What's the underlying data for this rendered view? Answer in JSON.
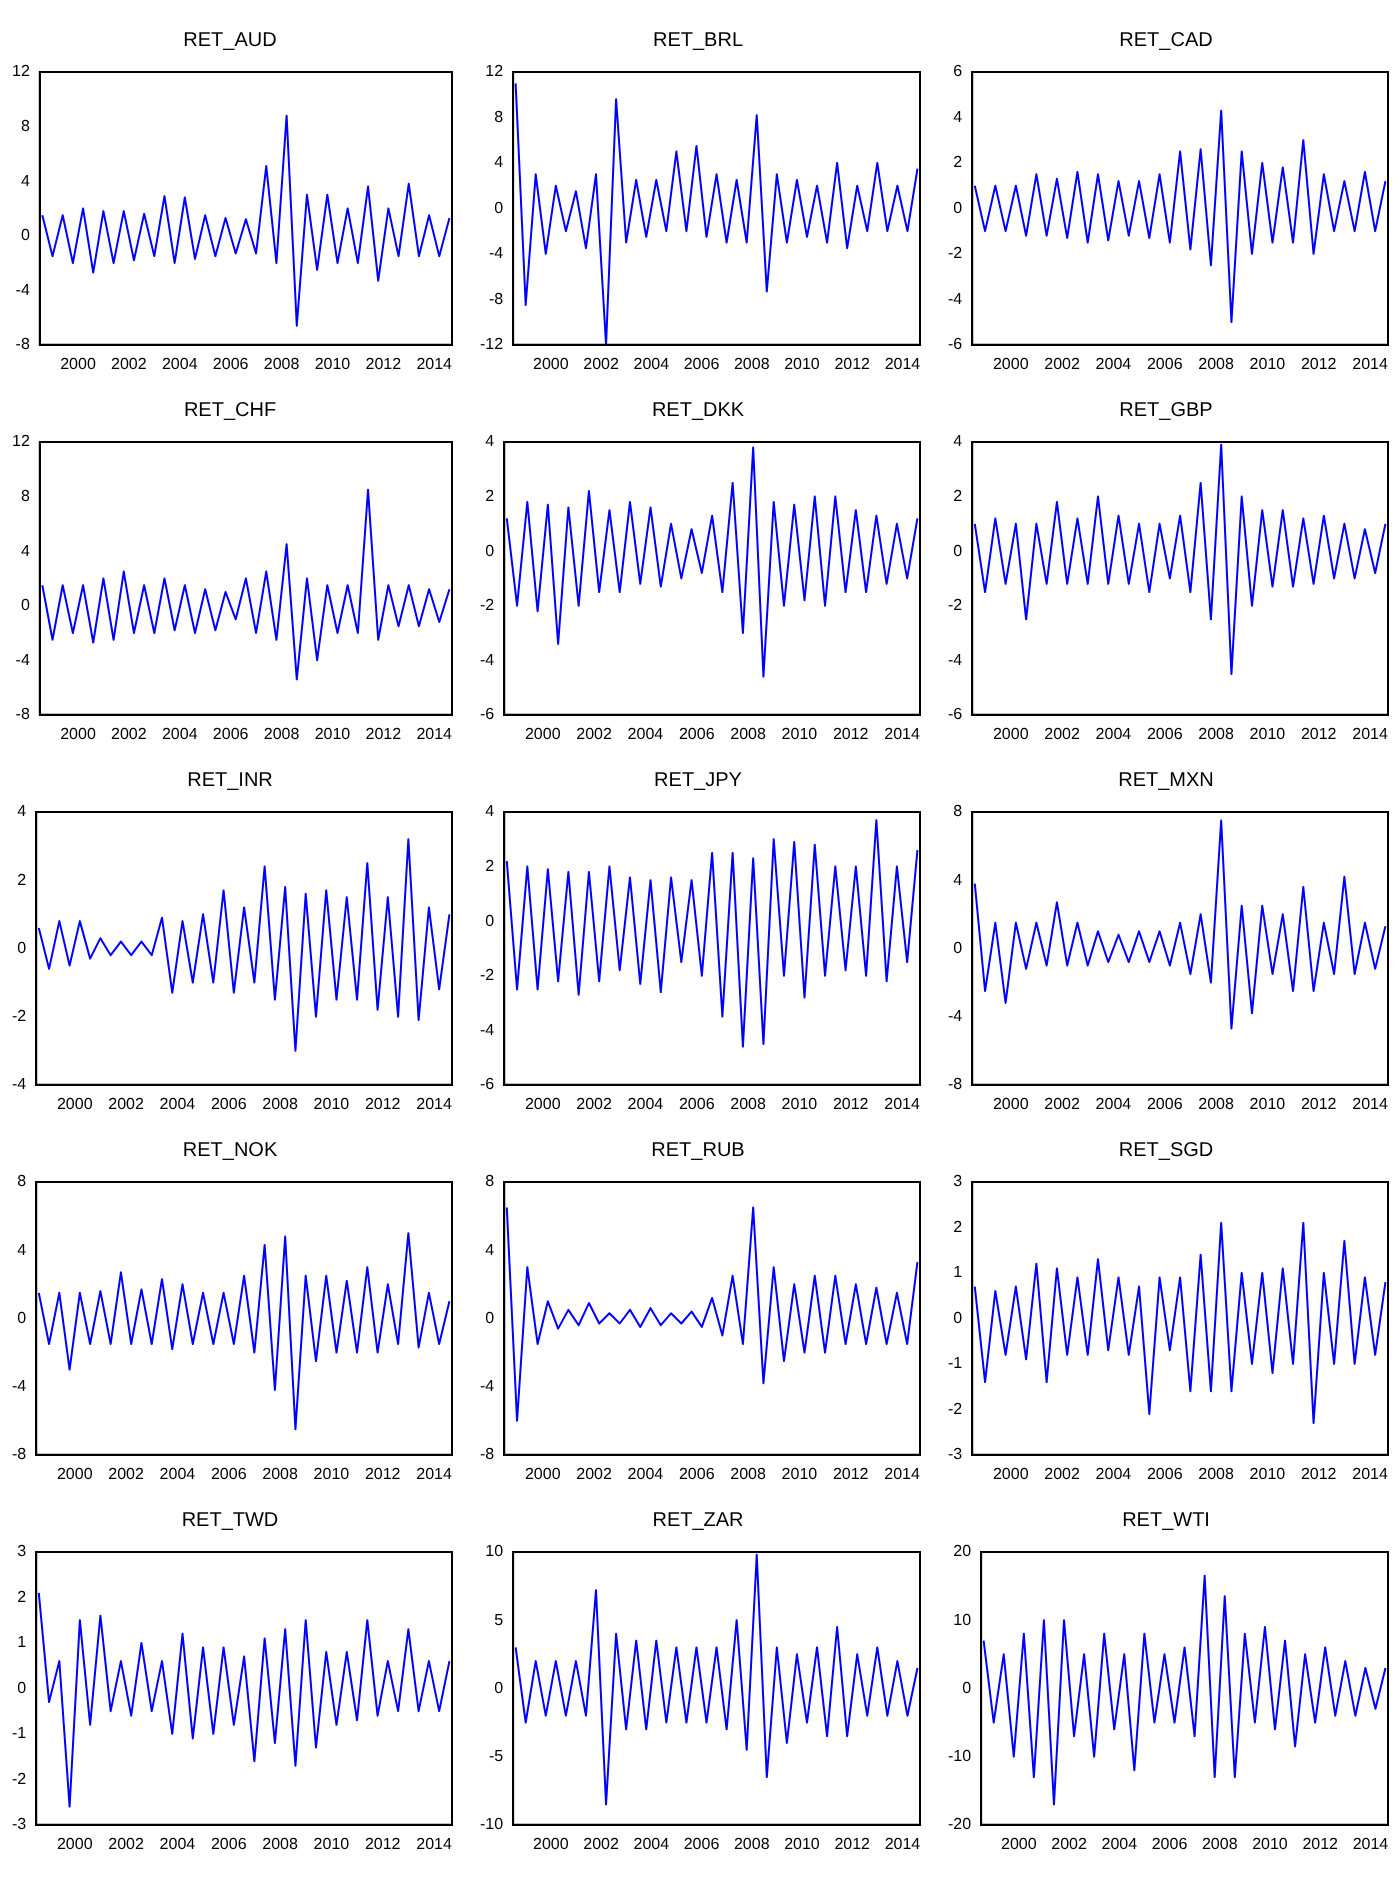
{
  "chart_data": [
    {
      "type": "line",
      "title": "RET_AUD",
      "color": "#0000ff",
      "xlim": [
        1998.5,
        2014.7
      ],
      "xticks": [
        2000,
        2002,
        2004,
        2006,
        2008,
        2010,
        2012,
        2014
      ],
      "ylim": [
        -8,
        12
      ],
      "yticks": [
        -8,
        -4,
        0,
        4,
        8,
        12
      ],
      "x": [
        1998.6,
        1999,
        1999.4,
        1999.8,
        2000.2,
        2000.6,
        2001,
        2001.4,
        2001.8,
        2002.2,
        2002.6,
        2003,
        2003.4,
        2003.8,
        2004.2,
        2004.6,
        2005,
        2005.4,
        2005.8,
        2006.2,
        2006.6,
        2007,
        2007.4,
        2007.8,
        2008.2,
        2008.6,
        2009,
        2009.4,
        2009.8,
        2010.2,
        2010.6,
        2011,
        2011.4,
        2011.8,
        2012.2,
        2012.6,
        2013,
        2013.4,
        2013.8,
        2014.2,
        2014.6
      ],
      "values": [
        1.5,
        -1.5,
        1.5,
        -2,
        2,
        -2.7,
        1.8,
        -2,
        1.8,
        -1.8,
        1.6,
        -1.5,
        2.9,
        -2,
        2.8,
        -1.7,
        1.5,
        -1.5,
        1.3,
        -1.3,
        1.2,
        -1.3,
        5.1,
        -2,
        8.8,
        -6.6,
        3,
        -2.5,
        3,
        -2,
        2,
        -2,
        3.6,
        -3.3,
        2,
        -1.5,
        3.8,
        -1.5,
        1.5,
        -1.5,
        1.3
      ]
    },
    {
      "type": "line",
      "title": "RET_BRL",
      "color": "#0000ff",
      "xlim": [
        1998.5,
        2014.7
      ],
      "xticks": [
        2000,
        2002,
        2004,
        2006,
        2008,
        2010,
        2012,
        2014
      ],
      "ylim": [
        -12,
        12
      ],
      "yticks": [
        -12,
        -8,
        -4,
        0,
        4,
        8,
        12
      ],
      "x": [
        1998.6,
        1999,
        1999.4,
        1999.8,
        2000.2,
        2000.6,
        2001,
        2001.4,
        2001.8,
        2002.2,
        2002.6,
        2003,
        2003.4,
        2003.8,
        2004.2,
        2004.6,
        2005,
        2005.4,
        2005.8,
        2006.2,
        2006.6,
        2007,
        2007.4,
        2007.8,
        2008.2,
        2008.6,
        2009,
        2009.4,
        2009.8,
        2010.2,
        2010.6,
        2011,
        2011.4,
        2011.8,
        2012.2,
        2012.6,
        2013,
        2013.4,
        2013.8,
        2014.2,
        2014.6
      ],
      "values": [
        11,
        -8.5,
        3,
        -4,
        2,
        -2,
        1.5,
        -3.5,
        3,
        -12,
        9.6,
        -3,
        2.5,
        -2.5,
        2.5,
        -2,
        5,
        -2,
        5.5,
        -2.5,
        3,
        -3,
        2.5,
        -3,
        8.2,
        -7.3,
        3,
        -3,
        2.5,
        -2.5,
        2,
        -3,
        4,
        -3.5,
        2,
        -2,
        4,
        -2,
        2,
        -2,
        3.5
      ]
    },
    {
      "type": "line",
      "title": "RET_CAD",
      "color": "#0000ff",
      "xlim": [
        1998.5,
        2014.7
      ],
      "xticks": [
        2000,
        2002,
        2004,
        2006,
        2008,
        2010,
        2012,
        2014
      ],
      "ylim": [
        -6,
        6
      ],
      "yticks": [
        -6,
        -4,
        -2,
        0,
        2,
        4,
        6
      ],
      "x": [
        1998.6,
        1999,
        1999.4,
        1999.8,
        2000.2,
        2000.6,
        2001,
        2001.4,
        2001.8,
        2002.2,
        2002.6,
        2003,
        2003.4,
        2003.8,
        2004.2,
        2004.6,
        2005,
        2005.4,
        2005.8,
        2006.2,
        2006.6,
        2007,
        2007.4,
        2007.8,
        2008.2,
        2008.6,
        2009,
        2009.4,
        2009.8,
        2010.2,
        2010.6,
        2011,
        2011.4,
        2011.8,
        2012.2,
        2012.6,
        2013,
        2013.4,
        2013.8,
        2014.2,
        2014.6
      ],
      "values": [
        1,
        -1,
        1,
        -1,
        1,
        -1.2,
        1.5,
        -1.2,
        1.3,
        -1.3,
        1.6,
        -1.5,
        1.5,
        -1.4,
        1.2,
        -1.2,
        1.2,
        -1.3,
        1.5,
        -1.5,
        2.5,
        -1.8,
        2.6,
        -2.5,
        4.3,
        -5,
        2.5,
        -2,
        2,
        -1.5,
        1.8,
        -1.5,
        3,
        -2,
        1.5,
        -1,
        1.2,
        -1,
        1.6,
        -1,
        1.2
      ]
    },
    {
      "type": "line",
      "title": "RET_CHF",
      "color": "#0000ff",
      "xlim": [
        1998.5,
        2014.7
      ],
      "xticks": [
        2000,
        2002,
        2004,
        2006,
        2008,
        2010,
        2012,
        2014
      ],
      "ylim": [
        -8,
        12
      ],
      "yticks": [
        -8,
        -4,
        0,
        4,
        8,
        12
      ],
      "x": [
        1998.6,
        1999,
        1999.4,
        1999.8,
        2000.2,
        2000.6,
        2001,
        2001.4,
        2001.8,
        2002.2,
        2002.6,
        2003,
        2003.4,
        2003.8,
        2004.2,
        2004.6,
        2005,
        2005.4,
        2005.8,
        2006.2,
        2006.6,
        2007,
        2007.4,
        2007.8,
        2008.2,
        2008.6,
        2009,
        2009.4,
        2009.8,
        2010.2,
        2010.6,
        2011,
        2011.4,
        2011.8,
        2012.2,
        2012.6,
        2013,
        2013.4,
        2013.8,
        2014.2,
        2014.6
      ],
      "values": [
        1.5,
        -2.5,
        1.5,
        -2,
        1.5,
        -2.7,
        2,
        -2.5,
        2.5,
        -2,
        1.5,
        -2,
        2,
        -1.8,
        1.5,
        -2,
        1.2,
        -1.8,
        1,
        -1,
        2,
        -2,
        2.5,
        -2.5,
        4.5,
        -5.4,
        2,
        -4,
        1.5,
        -2,
        1.5,
        -2,
        8.5,
        -2.5,
        1.5,
        -1.5,
        1.5,
        -1.5,
        1.2,
        -1.2,
        1.2
      ]
    },
    {
      "type": "line",
      "title": "RET_DKK",
      "color": "#0000ff",
      "xlim": [
        1998.5,
        2014.7
      ],
      "xticks": [
        2000,
        2002,
        2004,
        2006,
        2008,
        2010,
        2012,
        2014
      ],
      "ylim": [
        -6,
        4
      ],
      "yticks": [
        -6,
        -4,
        -2,
        0,
        2,
        4
      ],
      "x": [
        1998.6,
        1999,
        1999.4,
        1999.8,
        2000.2,
        2000.6,
        2001,
        2001.4,
        2001.8,
        2002.2,
        2002.6,
        2003,
        2003.4,
        2003.8,
        2004.2,
        2004.6,
        2005,
        2005.4,
        2005.8,
        2006.2,
        2006.6,
        2007,
        2007.4,
        2007.8,
        2008.2,
        2008.6,
        2009,
        2009.4,
        2009.8,
        2010.2,
        2010.6,
        2011,
        2011.4,
        2011.8,
        2012.2,
        2012.6,
        2013,
        2013.4,
        2013.8,
        2014.2,
        2014.6
      ],
      "values": [
        1.2,
        -2,
        1.8,
        -2.2,
        1.7,
        -3.4,
        1.6,
        -2,
        2.2,
        -1.5,
        1.5,
        -1.5,
        1.8,
        -1.2,
        1.6,
        -1.3,
        1,
        -1,
        0.8,
        -0.8,
        1.3,
        -1.5,
        2.5,
        -3,
        3.8,
        -4.6,
        1.8,
        -2,
        1.7,
        -1.8,
        2,
        -2,
        2,
        -1.5,
        1.5,
        -1.5,
        1.3,
        -1.2,
        1,
        -1,
        1.2
      ]
    },
    {
      "type": "line",
      "title": "RET_GBP",
      "color": "#0000ff",
      "xlim": [
        1998.5,
        2014.7
      ],
      "xticks": [
        2000,
        2002,
        2004,
        2006,
        2008,
        2010,
        2012,
        2014
      ],
      "ylim": [
        -6,
        4
      ],
      "yticks": [
        -6,
        -4,
        -2,
        0,
        2,
        4
      ],
      "x": [
        1998.6,
        1999,
        1999.4,
        1999.8,
        2000.2,
        2000.6,
        2001,
        2001.4,
        2001.8,
        2002.2,
        2002.6,
        2003,
        2003.4,
        2003.8,
        2004.2,
        2004.6,
        2005,
        2005.4,
        2005.8,
        2006.2,
        2006.6,
        2007,
        2007.4,
        2007.8,
        2008.2,
        2008.6,
        2009,
        2009.4,
        2009.8,
        2010.2,
        2010.6,
        2011,
        2011.4,
        2011.8,
        2012.2,
        2012.6,
        2013,
        2013.4,
        2013.8,
        2014.2,
        2014.6
      ],
      "values": [
        1,
        -1.5,
        1.2,
        -1.2,
        1,
        -2.5,
        1,
        -1.2,
        1.8,
        -1.2,
        1.2,
        -1.2,
        2,
        -1.2,
        1.3,
        -1.2,
        1,
        -1.5,
        1,
        -1,
        1.3,
        -1.5,
        2.5,
        -2.5,
        3.9,
        -4.5,
        2,
        -2,
        1.5,
        -1.3,
        1.5,
        -1.3,
        1.2,
        -1.2,
        1.3,
        -1,
        1,
        -1,
        0.8,
        -0.8,
        1
      ]
    },
    {
      "type": "line",
      "title": "RET_INR",
      "color": "#0000ff",
      "xlim": [
        1998.5,
        2014.7
      ],
      "xticks": [
        2000,
        2002,
        2004,
        2006,
        2008,
        2010,
        2012,
        2014
      ],
      "ylim": [
        -4,
        4
      ],
      "yticks": [
        -4,
        -2,
        0,
        2,
        4
      ],
      "x": [
        1998.6,
        1999,
        1999.4,
        1999.8,
        2000.2,
        2000.6,
        2001,
        2001.4,
        2001.8,
        2002.2,
        2002.6,
        2003,
        2003.4,
        2003.8,
        2004.2,
        2004.6,
        2005,
        2005.4,
        2005.8,
        2006.2,
        2006.6,
        2007,
        2007.4,
        2007.8,
        2008.2,
        2008.6,
        2009,
        2009.4,
        2009.8,
        2010.2,
        2010.6,
        2011,
        2011.4,
        2011.8,
        2012.2,
        2012.6,
        2013,
        2013.4,
        2013.8,
        2014.2,
        2014.6
      ],
      "values": [
        0.6,
        -0.6,
        0.8,
        -0.5,
        0.8,
        -0.3,
        0.3,
        -0.2,
        0.2,
        -0.2,
        0.2,
        -0.2,
        0.9,
        -1.3,
        0.8,
        -1,
        1,
        -1,
        1.7,
        -1.3,
        1.2,
        -1,
        2.4,
        -1.5,
        1.8,
        -3,
        1.6,
        -2,
        1.7,
        -1.5,
        1.5,
        -1.5,
        2.5,
        -1.8,
        1.5,
        -2,
        3.2,
        -2.1,
        1.2,
        -1.2,
        1
      ]
    },
    {
      "type": "line",
      "title": "RET_JPY",
      "color": "#0000ff",
      "xlim": [
        1998.5,
        2014.7
      ],
      "xticks": [
        2000,
        2002,
        2004,
        2006,
        2008,
        2010,
        2012,
        2014
      ],
      "ylim": [
        -6,
        4
      ],
      "yticks": [
        -6,
        -4,
        -2,
        0,
        2,
        4
      ],
      "x": [
        1998.6,
        1999,
        1999.4,
        1999.8,
        2000.2,
        2000.6,
        2001,
        2001.4,
        2001.8,
        2002.2,
        2002.6,
        2003,
        2003.4,
        2003.8,
        2004.2,
        2004.6,
        2005,
        2005.4,
        2005.8,
        2006.2,
        2006.6,
        2007,
        2007.4,
        2007.8,
        2008.2,
        2008.6,
        2009,
        2009.4,
        2009.8,
        2010.2,
        2010.6,
        2011,
        2011.4,
        2011.8,
        2012.2,
        2012.6,
        2013,
        2013.4,
        2013.8,
        2014.2,
        2014.6
      ],
      "values": [
        2.2,
        -2.5,
        2,
        -2.5,
        1.9,
        -2.2,
        1.8,
        -2.7,
        1.8,
        -2.2,
        2,
        -1.8,
        1.6,
        -2.3,
        1.5,
        -2.6,
        1.6,
        -1.5,
        1.5,
        -2,
        2.5,
        -3.5,
        2.5,
        -4.6,
        2.3,
        -4.5,
        3,
        -2,
        2.9,
        -2.8,
        2.8,
        -2,
        2,
        -1.8,
        2,
        -2,
        3.7,
        -2.2,
        2,
        -1.5,
        2.6
      ]
    },
    {
      "type": "line",
      "title": "RET_MXN",
      "color": "#0000ff",
      "xlim": [
        1998.5,
        2014.7
      ],
      "xticks": [
        2000,
        2002,
        2004,
        2006,
        2008,
        2010,
        2012,
        2014
      ],
      "ylim": [
        -8,
        8
      ],
      "yticks": [
        -8,
        -4,
        0,
        4,
        8
      ],
      "x": [
        1998.6,
        1999,
        1999.4,
        1999.8,
        2000.2,
        2000.6,
        2001,
        2001.4,
        2001.8,
        2002.2,
        2002.6,
        2003,
        2003.4,
        2003.8,
        2004.2,
        2004.6,
        2005,
        2005.4,
        2005.8,
        2006.2,
        2006.6,
        2007,
        2007.4,
        2007.8,
        2008.2,
        2008.6,
        2009,
        2009.4,
        2009.8,
        2010.2,
        2010.6,
        2011,
        2011.4,
        2011.8,
        2012.2,
        2012.6,
        2013,
        2013.4,
        2013.8,
        2014.2,
        2014.6
      ],
      "values": [
        3.8,
        -2.5,
        1.5,
        -3.2,
        1.5,
        -1.2,
        1.5,
        -1,
        2.7,
        -1,
        1.5,
        -1,
        1,
        -0.8,
        0.8,
        -0.8,
        1,
        -0.8,
        1,
        -1,
        1.5,
        -1.5,
        2,
        -2,
        7.5,
        -4.7,
        2.5,
        -3.8,
        2.5,
        -1.5,
        2,
        -2.5,
        3.6,
        -2.5,
        1.5,
        -1.5,
        4.2,
        -1.5,
        1.5,
        -1.2,
        1.3
      ]
    },
    {
      "type": "line",
      "title": "RET_NOK",
      "color": "#0000ff",
      "xlim": [
        1998.5,
        2014.7
      ],
      "xticks": [
        2000,
        2002,
        2004,
        2006,
        2008,
        2010,
        2012,
        2014
      ],
      "ylim": [
        -8,
        8
      ],
      "yticks": [
        -8,
        -4,
        0,
        4,
        8
      ],
      "x": [
        1998.6,
        1999,
        1999.4,
        1999.8,
        2000.2,
        2000.6,
        2001,
        2001.4,
        2001.8,
        2002.2,
        2002.6,
        2003,
        2003.4,
        2003.8,
        2004.2,
        2004.6,
        2005,
        2005.4,
        2005.8,
        2006.2,
        2006.6,
        2007,
        2007.4,
        2007.8,
        2008.2,
        2008.6,
        2009,
        2009.4,
        2009.8,
        2010.2,
        2010.6,
        2011,
        2011.4,
        2011.8,
        2012.2,
        2012.6,
        2013,
        2013.4,
        2013.8,
        2014.2,
        2014.6
      ],
      "values": [
        1.5,
        -1.5,
        1.5,
        -3,
        1.5,
        -1.5,
        1.6,
        -1.5,
        2.7,
        -1.5,
        1.7,
        -1.5,
        2.3,
        -1.8,
        2,
        -1.5,
        1.5,
        -1.5,
        1.5,
        -1.5,
        2.5,
        -2,
        4.3,
        -4.2,
        4.8,
        -6.5,
        2.5,
        -2.5,
        2.5,
        -2,
        2.2,
        -2,
        3,
        -2,
        2,
        -1.5,
        5,
        -1.7,
        1.5,
        -1.5,
        1
      ]
    },
    {
      "type": "line",
      "title": "RET_RUB",
      "color": "#0000ff",
      "xlim": [
        1998.5,
        2014.7
      ],
      "xticks": [
        2000,
        2002,
        2004,
        2006,
        2008,
        2010,
        2012,
        2014
      ],
      "ylim": [
        -8,
        8
      ],
      "yticks": [
        -8,
        -4,
        0,
        4,
        8
      ],
      "x": [
        1998.6,
        1999,
        1999.4,
        1999.8,
        2000.2,
        2000.6,
        2001,
        2001.4,
        2001.8,
        2002.2,
        2002.6,
        2003,
        2003.4,
        2003.8,
        2004.2,
        2004.6,
        2005,
        2005.4,
        2005.8,
        2006.2,
        2006.6,
        2007,
        2007.4,
        2007.8,
        2008.2,
        2008.6,
        2009,
        2009.4,
        2009.8,
        2010.2,
        2010.6,
        2011,
        2011.4,
        2011.8,
        2012.2,
        2012.6,
        2013,
        2013.4,
        2013.8,
        2014.2,
        2014.6
      ],
      "values": [
        6.5,
        -6,
        3,
        -1.5,
        1,
        -0.6,
        0.5,
        -0.4,
        0.9,
        -0.3,
        0.3,
        -0.3,
        0.5,
        -0.5,
        0.6,
        -0.4,
        0.3,
        -0.3,
        0.4,
        -0.5,
        1.2,
        -1,
        2.5,
        -1.5,
        6.5,
        -3.8,
        3,
        -2.5,
        2,
        -2,
        2.5,
        -2,
        2.5,
        -1.5,
        2,
        -1.5,
        1.8,
        -1.5,
        1.5,
        -1.5,
        3.3
      ]
    },
    {
      "type": "line",
      "title": "RET_SGD",
      "color": "#0000ff",
      "xlim": [
        1998.5,
        2014.7
      ],
      "xticks": [
        2000,
        2002,
        2004,
        2006,
        2008,
        2010,
        2012,
        2014
      ],
      "ylim": [
        -3,
        3
      ],
      "yticks": [
        -3,
        -2,
        -1,
        0,
        1,
        2,
        3
      ],
      "x": [
        1998.6,
        1999,
        1999.4,
        1999.8,
        2000.2,
        2000.6,
        2001,
        2001.4,
        2001.8,
        2002.2,
        2002.6,
        2003,
        2003.4,
        2003.8,
        2004.2,
        2004.6,
        2005,
        2005.4,
        2005.8,
        2006.2,
        2006.6,
        2007,
        2007.4,
        2007.8,
        2008.2,
        2008.6,
        2009,
        2009.4,
        2009.8,
        2010.2,
        2010.6,
        2011,
        2011.4,
        2011.8,
        2012.2,
        2012.6,
        2013,
        2013.4,
        2013.8,
        2014.2,
        2014.6
      ],
      "values": [
        0.7,
        -1.4,
        0.6,
        -0.8,
        0.7,
        -0.9,
        1.2,
        -1.4,
        1.1,
        -0.8,
        0.9,
        -0.8,
        1.3,
        -0.7,
        0.9,
        -0.8,
        0.7,
        -2.1,
        0.9,
        -0.7,
        0.9,
        -1.6,
        1.4,
        -1.6,
        2.1,
        -1.6,
        1,
        -1,
        1,
        -1.2,
        1.1,
        -1,
        2.1,
        -2.3,
        1,
        -1,
        1.7,
        -1,
        0.9,
        -0.8,
        0.8
      ]
    },
    {
      "type": "line",
      "title": "RET_TWD",
      "color": "#0000ff",
      "xlim": [
        1998.5,
        2014.7
      ],
      "xticks": [
        2000,
        2002,
        2004,
        2006,
        2008,
        2010,
        2012,
        2014
      ],
      "ylim": [
        -3,
        3
      ],
      "yticks": [
        -3,
        -2,
        -1,
        0,
        1,
        2,
        3
      ],
      "x": [
        1998.6,
        1999,
        1999.4,
        1999.8,
        2000.2,
        2000.6,
        2001,
        2001.4,
        2001.8,
        2002.2,
        2002.6,
        2003,
        2003.4,
        2003.8,
        2004.2,
        2004.6,
        2005,
        2005.4,
        2005.8,
        2006.2,
        2006.6,
        2007,
        2007.4,
        2007.8,
        2008.2,
        2008.6,
        2009,
        2009.4,
        2009.8,
        2010.2,
        2010.6,
        2011,
        2011.4,
        2011.8,
        2012.2,
        2012.6,
        2013,
        2013.4,
        2013.8,
        2014.2,
        2014.6
      ],
      "values": [
        2.1,
        -0.3,
        0.6,
        -2.6,
        1.5,
        -0.8,
        1.6,
        -0.5,
        0.6,
        -0.6,
        1,
        -0.5,
        0.6,
        -1,
        1.2,
        -1.1,
        0.9,
        -1,
        0.9,
        -0.8,
        0.7,
        -1.6,
        1.1,
        -1.2,
        1.3,
        -1.7,
        1.5,
        -1.3,
        0.8,
        -0.8,
        0.8,
        -0.7,
        1.5,
        -0.6,
        0.6,
        -0.5,
        1.3,
        -0.5,
        0.6,
        -0.5,
        0.6
      ]
    },
    {
      "type": "line",
      "title": "RET_ZAR",
      "color": "#0000ff",
      "xlim": [
        1998.5,
        2014.7
      ],
      "xticks": [
        2000,
        2002,
        2004,
        2006,
        2008,
        2010,
        2012,
        2014
      ],
      "ylim": [
        -10,
        10
      ],
      "yticks": [
        -10,
        -5,
        0,
        5,
        10
      ],
      "x": [
        1998.6,
        1999,
        1999.4,
        1999.8,
        2000.2,
        2000.6,
        2001,
        2001.4,
        2001.8,
        2002.2,
        2002.6,
        2003,
        2003.4,
        2003.8,
        2004.2,
        2004.6,
        2005,
        2005.4,
        2005.8,
        2006.2,
        2006.6,
        2007,
        2007.4,
        2007.8,
        2008.2,
        2008.6,
        2009,
        2009.4,
        2009.8,
        2010.2,
        2010.6,
        2011,
        2011.4,
        2011.8,
        2012.2,
        2012.6,
        2013,
        2013.4,
        2013.8,
        2014.2,
        2014.6
      ],
      "values": [
        3,
        -2.5,
        2,
        -2,
        2,
        -2,
        2,
        -2,
        7.2,
        -8.5,
        4,
        -3,
        3.5,
        -3,
        3.5,
        -2.5,
        3,
        -2.5,
        3,
        -2.5,
        3,
        -3,
        5,
        -4.5,
        9.8,
        -6.5,
        3,
        -4,
        2.5,
        -2.5,
        3,
        -3.5,
        4.5,
        -3.5,
        2.5,
        -2,
        3,
        -2,
        2,
        -2,
        1.5
      ]
    },
    {
      "type": "line",
      "title": "RET_WTI",
      "color": "#0000ff",
      "xlim": [
        1998.5,
        2014.7
      ],
      "xticks": [
        2000,
        2002,
        2004,
        2006,
        2008,
        2010,
        2012,
        2014
      ],
      "ylim": [
        -20,
        20
      ],
      "yticks": [
        -20,
        -10,
        0,
        10,
        20
      ],
      "x": [
        1998.6,
        1999,
        1999.4,
        1999.8,
        2000.2,
        2000.6,
        2001,
        2001.4,
        2001.8,
        2002.2,
        2002.6,
        2003,
        2003.4,
        2003.8,
        2004.2,
        2004.6,
        2005,
        2005.4,
        2005.8,
        2006.2,
        2006.6,
        2007,
        2007.4,
        2007.8,
        2008.2,
        2008.6,
        2009,
        2009.4,
        2009.8,
        2010.2,
        2010.6,
        2011,
        2011.4,
        2011.8,
        2012.2,
        2012.6,
        2013,
        2013.4,
        2013.8,
        2014.2,
        2014.6
      ],
      "values": [
        7,
        -5,
        5,
        -10,
        8,
        -13,
        10,
        -17,
        10,
        -7,
        5,
        -10,
        8,
        -6,
        5,
        -12,
        8,
        -5,
        5,
        -5,
        6,
        -7,
        16.5,
        -13,
        13.5,
        -13,
        8,
        -5,
        9,
        -6,
        7,
        -8.5,
        5,
        -5,
        6,
        -4,
        4,
        -4,
        3,
        -3,
        3
      ]
    }
  ]
}
